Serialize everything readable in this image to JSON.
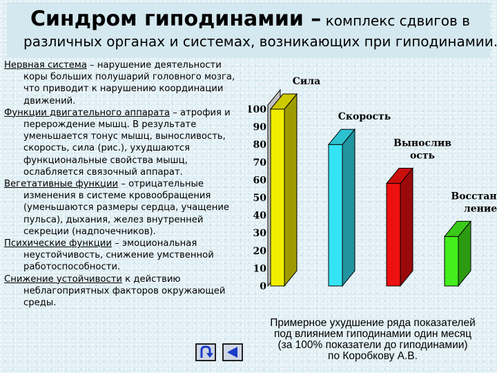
{
  "title": {
    "main": "Синдром гиподинамии –",
    "rest": " комплекс сдвигов в",
    "line2": "различных органах и системах, возникающих при гиподинамии."
  },
  "sections": [
    {
      "term": "Нервная система",
      "text": " – нарушение деятельности коры больших полушарий головного мозга, что приводит к нарушению координации движений."
    },
    {
      "term": "Функции двигательного аппарата",
      "text": " – атрофия и перерождение мышц. В результате уменьшается тонус мышц, выносливость, скорость, сила (рис.), ухудшаются функциональные свойства мышц, ослабляется связочный аппарат."
    },
    {
      "term": "Вегетативные функции",
      "text": " – отрицательные изменения в системе кровообращения (уменьшаются размеры сердца, учащение пульса), дыхания, желез внутренней секреции (надпочечников)."
    },
    {
      "term": "Психические функции",
      "text": " – эмоциональная неустойчивость, снижение умственной работоспособности."
    },
    {
      "term": "Снижение устойчивости",
      "text": " к действию неблагоприятных факторов окружающей среды."
    }
  ],
  "chart_data": {
    "type": "bar",
    "categories": [
      "Сила",
      "Скорость",
      "Выносливость",
      "Восстановление"
    ],
    "category_labels": [
      [
        "Сила"
      ],
      [
        "Скорость"
      ],
      [
        "Вынослив",
        "ость"
      ],
      [
        "Восстанов",
        "ление"
      ]
    ],
    "values": [
      100,
      80,
      58,
      28
    ],
    "colors": [
      "#f2ee00",
      "#35e4f4",
      "#ee1010",
      "#44ee1c"
    ],
    "yticks": [
      "0",
      "10",
      "20",
      "30",
      "40",
      "50",
      "60",
      "70",
      "80",
      "90",
      "100"
    ],
    "ylim": [
      0,
      100
    ]
  },
  "caption": {
    "line1": "Примерное ухудшение ряда показателей",
    "line2": "под влиянием гиподинамии один месяц",
    "line3": "(за 100% показатели до гиподинамии)",
    "line4": "по Коробкову А.В."
  },
  "nav": {
    "return_icon": "u-turn-arrow-icon",
    "prev_icon": "triangle-left-icon"
  }
}
